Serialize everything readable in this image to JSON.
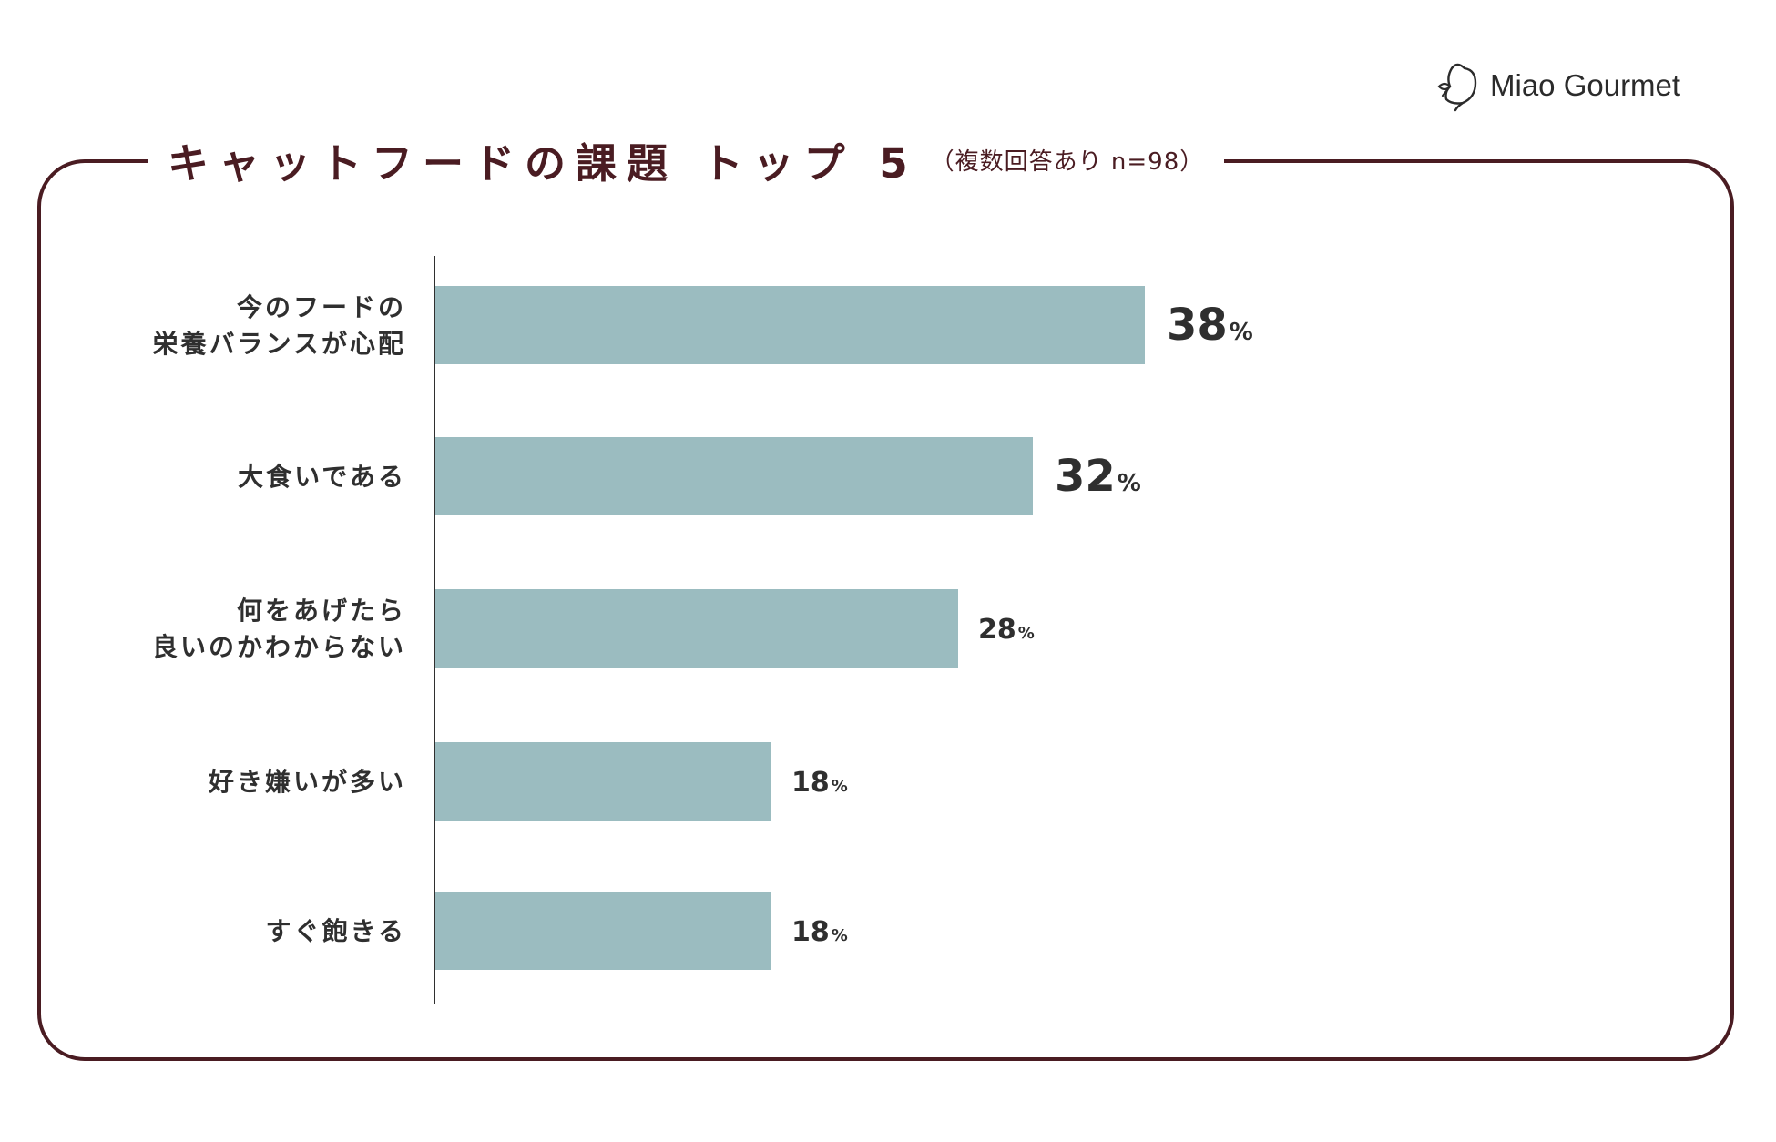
{
  "header": {
    "title": "キャットフードの課題 トップ 5",
    "subtitle": "（複数回答あり n=98）"
  },
  "brand": {
    "name": "Miao Gourmet",
    "logo_icon": "cat-head-icon"
  },
  "colors": {
    "frame": "#4a1c22",
    "bar": "#9bbcc0",
    "text": "#2f2f2f"
  },
  "chart_data": {
    "type": "bar",
    "orientation": "horizontal",
    "categories": [
      [
        "今のフードの",
        "栄養バランスが心配"
      ],
      [
        "大食いである"
      ],
      [
        "何をあげたら",
        "良いのかわからない"
      ],
      [
        "好き嫌いが多い"
      ],
      [
        "すぐ飽きる"
      ]
    ],
    "values": [
      38,
      32,
      28,
      18,
      18
    ],
    "value_suffix": "%",
    "xlim": [
      0,
      60
    ],
    "grid": false
  }
}
